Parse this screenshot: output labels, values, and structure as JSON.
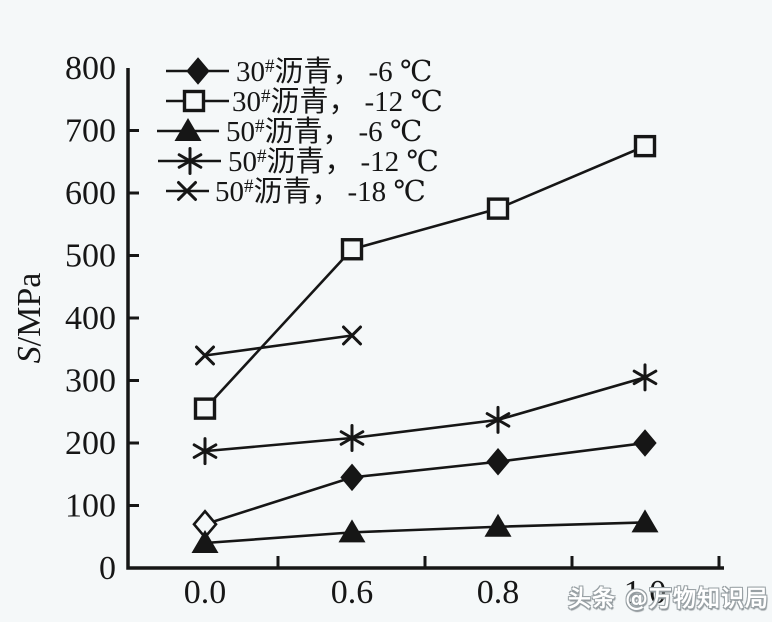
{
  "watermark": {
    "text": "头条 @万物知识局"
  },
  "colors": {
    "ink": "#161616",
    "background": "#f5f8f9",
    "watermark_fill": "#ffffff",
    "watermark_outline": "#98a0a4"
  },
  "chart_data": {
    "type": "line",
    "title": "",
    "xlabel": "",
    "ylabel": "S/MPa",
    "ylim": [
      0,
      800
    ],
    "ytick_step": 100,
    "y_tick_labels": [
      "0",
      "100",
      "200",
      "300",
      "400",
      "500",
      "600",
      "700",
      "800"
    ],
    "categories": [
      0.0,
      0.6,
      0.8,
      1.0
    ],
    "x_tick_labels": [
      "0.0",
      "0.6",
      "0.8",
      "1.0"
    ],
    "grid": false,
    "legend_position": "top-left-inside",
    "series": [
      {
        "name": "30#沥青，-6 ℃",
        "grade": "30",
        "hash": "#",
        "material": "沥青",
        "temp": "-6 ℃",
        "marker": "diamond",
        "first_point_open": true,
        "values": [
          70,
          145,
          170,
          200
        ]
      },
      {
        "name": "30#沥青，-12 ℃",
        "grade": "30",
        "hash": "#",
        "material": "沥青",
        "temp": "-12 ℃",
        "marker": "square-open",
        "first_point_open": false,
        "values": [
          255,
          510,
          575,
          675
        ]
      },
      {
        "name": "50#沥青，-6 ℃",
        "grade": "50",
        "hash": "#",
        "material": "沥青",
        "temp": "-6 ℃",
        "marker": "triangle",
        "first_point_open": false,
        "values": [
          40,
          57,
          66,
          73
        ]
      },
      {
        "name": "50#沥青，-12 ℃",
        "grade": "50",
        "hash": "#",
        "material": "沥青",
        "temp": "-12 ℃",
        "marker": "asterisk",
        "first_point_open": false,
        "values": [
          187,
          208,
          237,
          305
        ]
      },
      {
        "name": "50#沥青，-18 ℃",
        "grade": "50",
        "hash": "#",
        "material": "沥青",
        "temp": "-18 ℃",
        "marker": "x",
        "first_point_open": false,
        "values": [
          340,
          372,
          null,
          null
        ]
      }
    ]
  }
}
